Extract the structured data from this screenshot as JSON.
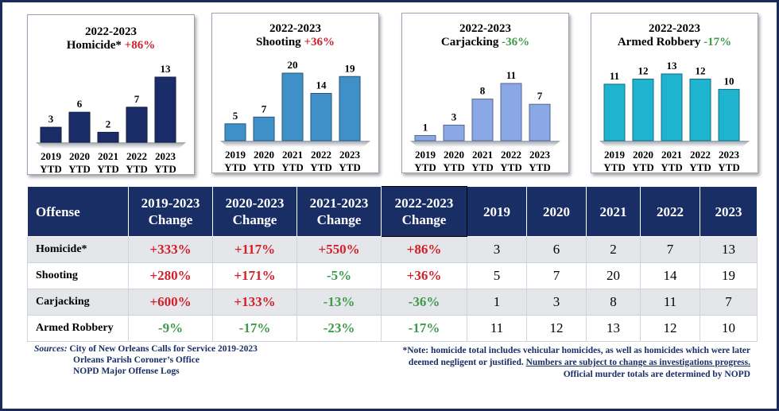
{
  "chart_data": [
    {
      "type": "bar",
      "title_period": "2022-2023",
      "title_name": "Homicide*",
      "title_change": "+86%",
      "change_color": "#d0202a",
      "bar_color": "#1b2d68",
      "categories": [
        "2019 YTD",
        "2020 YTD",
        "2021 YTD",
        "2022 YTD",
        "2023 YTD"
      ],
      "values": [
        3,
        6,
        2,
        7,
        13
      ],
      "ylim": [
        0,
        13
      ]
    },
    {
      "type": "bar",
      "title_period": "2022-2023",
      "title_name": "Shooting",
      "title_change": "+36%",
      "change_color": "#d0202a",
      "bar_color": "#3f8fc8",
      "categories": [
        "2019 YTD",
        "2020 YTD",
        "2021 YTD",
        "2022 YTD",
        "2023 YTD"
      ],
      "values": [
        5,
        7,
        20,
        14,
        19
      ],
      "ylim": [
        0,
        20
      ]
    },
    {
      "type": "bar",
      "title_period": "2022-2023",
      "title_name": "Carjacking",
      "title_change": "-36%",
      "change_color": "#3f9a4a",
      "bar_color": "#8aa8e6",
      "categories": [
        "2019 YTD",
        "2020 YTD",
        "2021 YTD",
        "2022 YTD",
        "2023 YTD"
      ],
      "values": [
        1,
        3,
        8,
        11,
        7
      ],
      "ylim": [
        0,
        11
      ]
    },
    {
      "type": "bar",
      "title_period": "2022-2023",
      "title_name": "Armed Robbery",
      "title_change": "-17%",
      "change_color": "#3f9a4a",
      "bar_color": "#1eb4d0",
      "categories": [
        "2019 YTD",
        "2020 YTD",
        "2021 YTD",
        "2022 YTD",
        "2023 YTD"
      ],
      "values": [
        11,
        12,
        13,
        12,
        10
      ],
      "ylim": [
        0,
        13
      ]
    },
    {
      "type": "table",
      "columns": [
        "Offense",
        "2019-2023 Change",
        "2020-2023 Change",
        "2021-2023 Change",
        "2022-2023 Change",
        "2019",
        "2020",
        "2021",
        "2022",
        "2023"
      ],
      "rows": [
        {
          "offense": "Homicide*",
          "changes": [
            "+333%",
            "+117%",
            "+550%",
            "+86%"
          ],
          "years": [
            3,
            6,
            2,
            7,
            13
          ]
        },
        {
          "offense": "Shooting",
          "changes": [
            "+280%",
            "+171%",
            "-5%",
            "+36%"
          ],
          "years": [
            5,
            7,
            20,
            14,
            19
          ]
        },
        {
          "offense": "Carjacking",
          "changes": [
            "+600%",
            "+133%",
            "-13%",
            "-36%"
          ],
          "years": [
            1,
            3,
            8,
            11,
            7
          ]
        },
        {
          "offense": "Armed Robbery",
          "changes": [
            "-9%",
            "-17%",
            "-23%",
            "-17%"
          ],
          "years": [
            11,
            12,
            13,
            12,
            10
          ]
        }
      ]
    }
  ],
  "sources": {
    "label": "Sources:",
    "lines": [
      "City of New Orleans Calls for Service 2019-2023",
      "Orleans Parish Coroner’s Office",
      "NOPD Major Offense Logs"
    ]
  },
  "note": {
    "part1": "*Note: homicide total includes vehicular homicides, as well as homicides which were later deemed negligent or justified. ",
    "part2": "Numbers are subject to change as investigations progress.",
    "part3": "Official murder totals are determined by NOPD"
  }
}
